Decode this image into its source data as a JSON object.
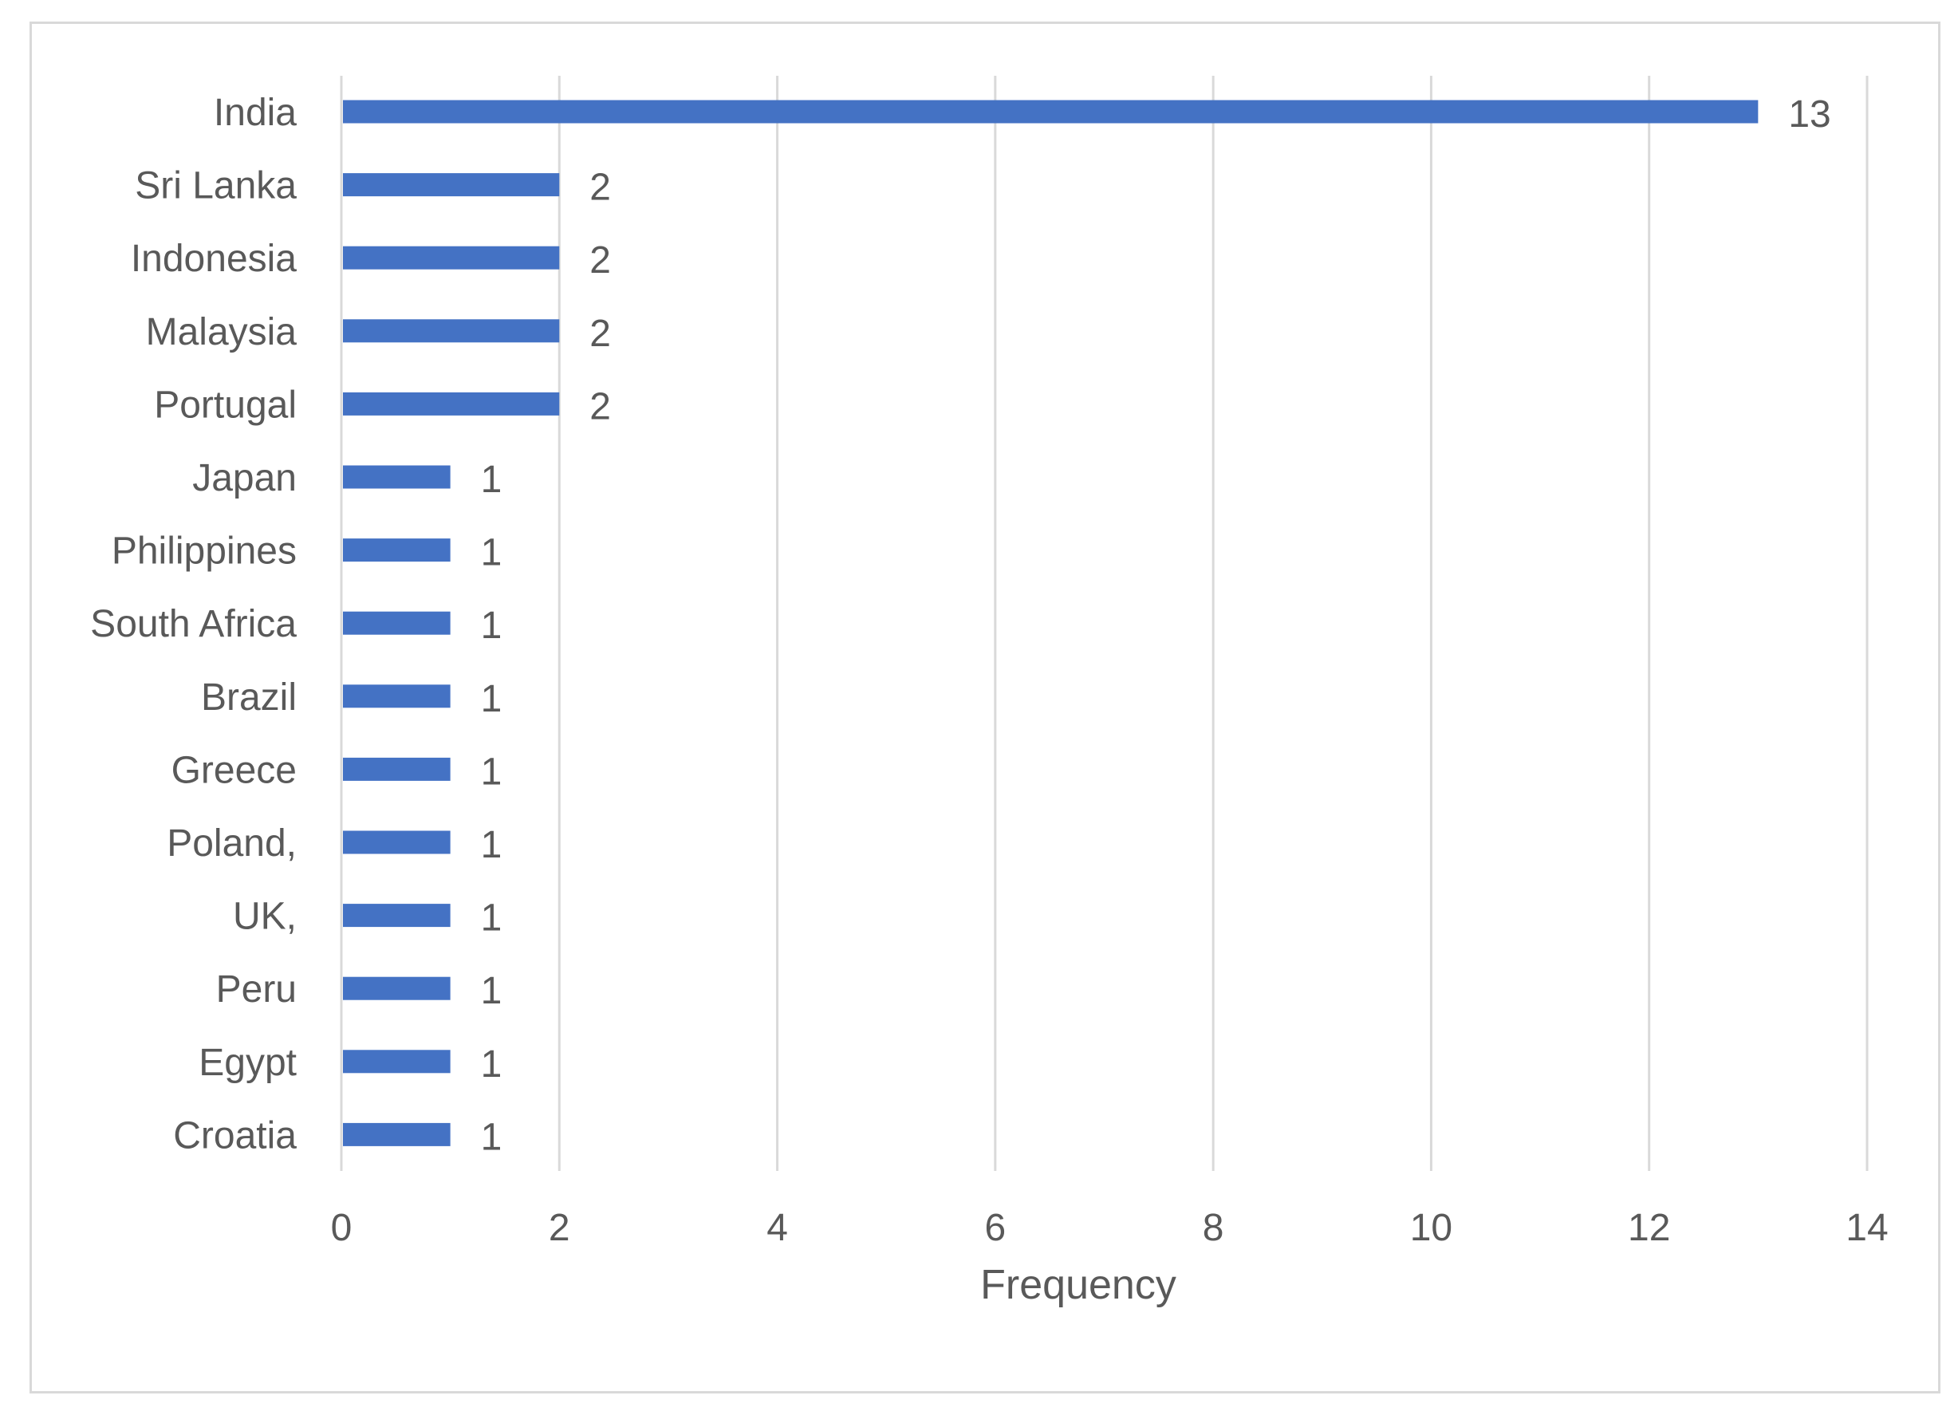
{
  "chart_data": {
    "type": "bar",
    "orientation": "horizontal",
    "title": "",
    "xlabel": "Frequency",
    "ylabel": "",
    "categories": [
      "India",
      "Sri Lanka",
      "Indonesia",
      "Malaysia",
      "Portugal",
      "Japan",
      "Philippines",
      "South Africa",
      "Brazil",
      "Greece",
      "Poland,",
      "UK,",
      "Peru",
      "Egypt",
      "Croatia"
    ],
    "values": [
      13,
      2,
      2,
      2,
      2,
      1,
      1,
      1,
      1,
      1,
      1,
      1,
      1,
      1,
      1
    ],
    "xlim": [
      0,
      14
    ],
    "xticks": [
      0,
      2,
      4,
      6,
      8,
      10,
      12,
      14
    ],
    "data_labels": true,
    "grid": "vertical",
    "legend": "none",
    "colors": {
      "bar": "#4472c4",
      "grid": "#d9d9d9",
      "text": "#595959",
      "frame": "#d9d9d9"
    }
  }
}
